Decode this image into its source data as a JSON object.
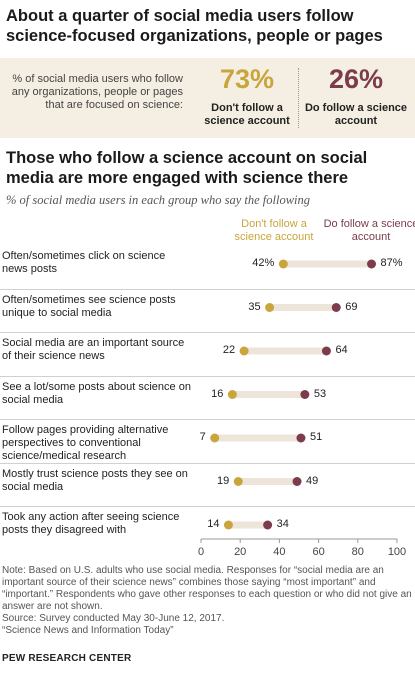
{
  "header": {
    "title": "About a quarter of social media users follow science-focused organizations, people or pages"
  },
  "summary": {
    "description": "% of social media users who follow any organizations, people or pages that are focused on science:",
    "dont_follow": {
      "value": "73%",
      "label": "Don't follow a science account"
    },
    "do_follow": {
      "value": "26%",
      "label": "Do follow a science account"
    }
  },
  "chart_title": "Those who follow a science account on social media are more engaged with science there",
  "colors": {
    "dont_follow": "#c9a53b",
    "do_follow": "#7b3c4b",
    "bar": "#ede5da"
  },
  "chart_data": {
    "type": "dot",
    "subtitle": "% of social media users in each group who say the following",
    "legend": [
      "Don't follow a science account",
      "Do follow a science account"
    ],
    "xlim": [
      0,
      100
    ],
    "x_ticks": [
      "0",
      "20",
      "40",
      "60",
      "80",
      "100"
    ],
    "rows": [
      {
        "label": "Often/sometimes click on science news posts",
        "dont_follow": 42,
        "do_follow": 87,
        "dont_label": "42%",
        "do_label": "87%"
      },
      {
        "label": "Often/sometimes see science posts unique to social media",
        "dont_follow": 35,
        "do_follow": 69,
        "dont_label": "35",
        "do_label": "69"
      },
      {
        "label": "Social media are an important source of their science news",
        "dont_follow": 22,
        "do_follow": 64,
        "dont_label": "22",
        "do_label": "64"
      },
      {
        "label": "See a lot/some posts about science on social media",
        "dont_follow": 16,
        "do_follow": 53,
        "dont_label": "16",
        "do_label": "53"
      },
      {
        "label": "Follow pages providing alternative perspectives to conventional science/medical research",
        "dont_follow": 7,
        "do_follow": 51,
        "dont_label": "7",
        "do_label": "51"
      },
      {
        "label": "Mostly trust science posts they see on social media",
        "dont_follow": 19,
        "do_follow": 49,
        "dont_label": "19",
        "do_label": "49"
      },
      {
        "label": "Took any action after seeing science posts they disagreed with",
        "dont_follow": 14,
        "do_follow": 34,
        "dont_label": "14",
        "do_label": "34"
      }
    ]
  },
  "notes": {
    "note": "Note: Based on U.S. adults who use social media. Responses for “social media are an important source of their science news” combines those saying “most important” and “important.” Respondents who gave other responses to each question or who did not give an answer are not shown.",
    "source": "Source: Survey conducted May 30-June 12, 2017.",
    "report": "“Science News and Information Today”",
    "brand": "PEW RESEARCH CENTER"
  }
}
